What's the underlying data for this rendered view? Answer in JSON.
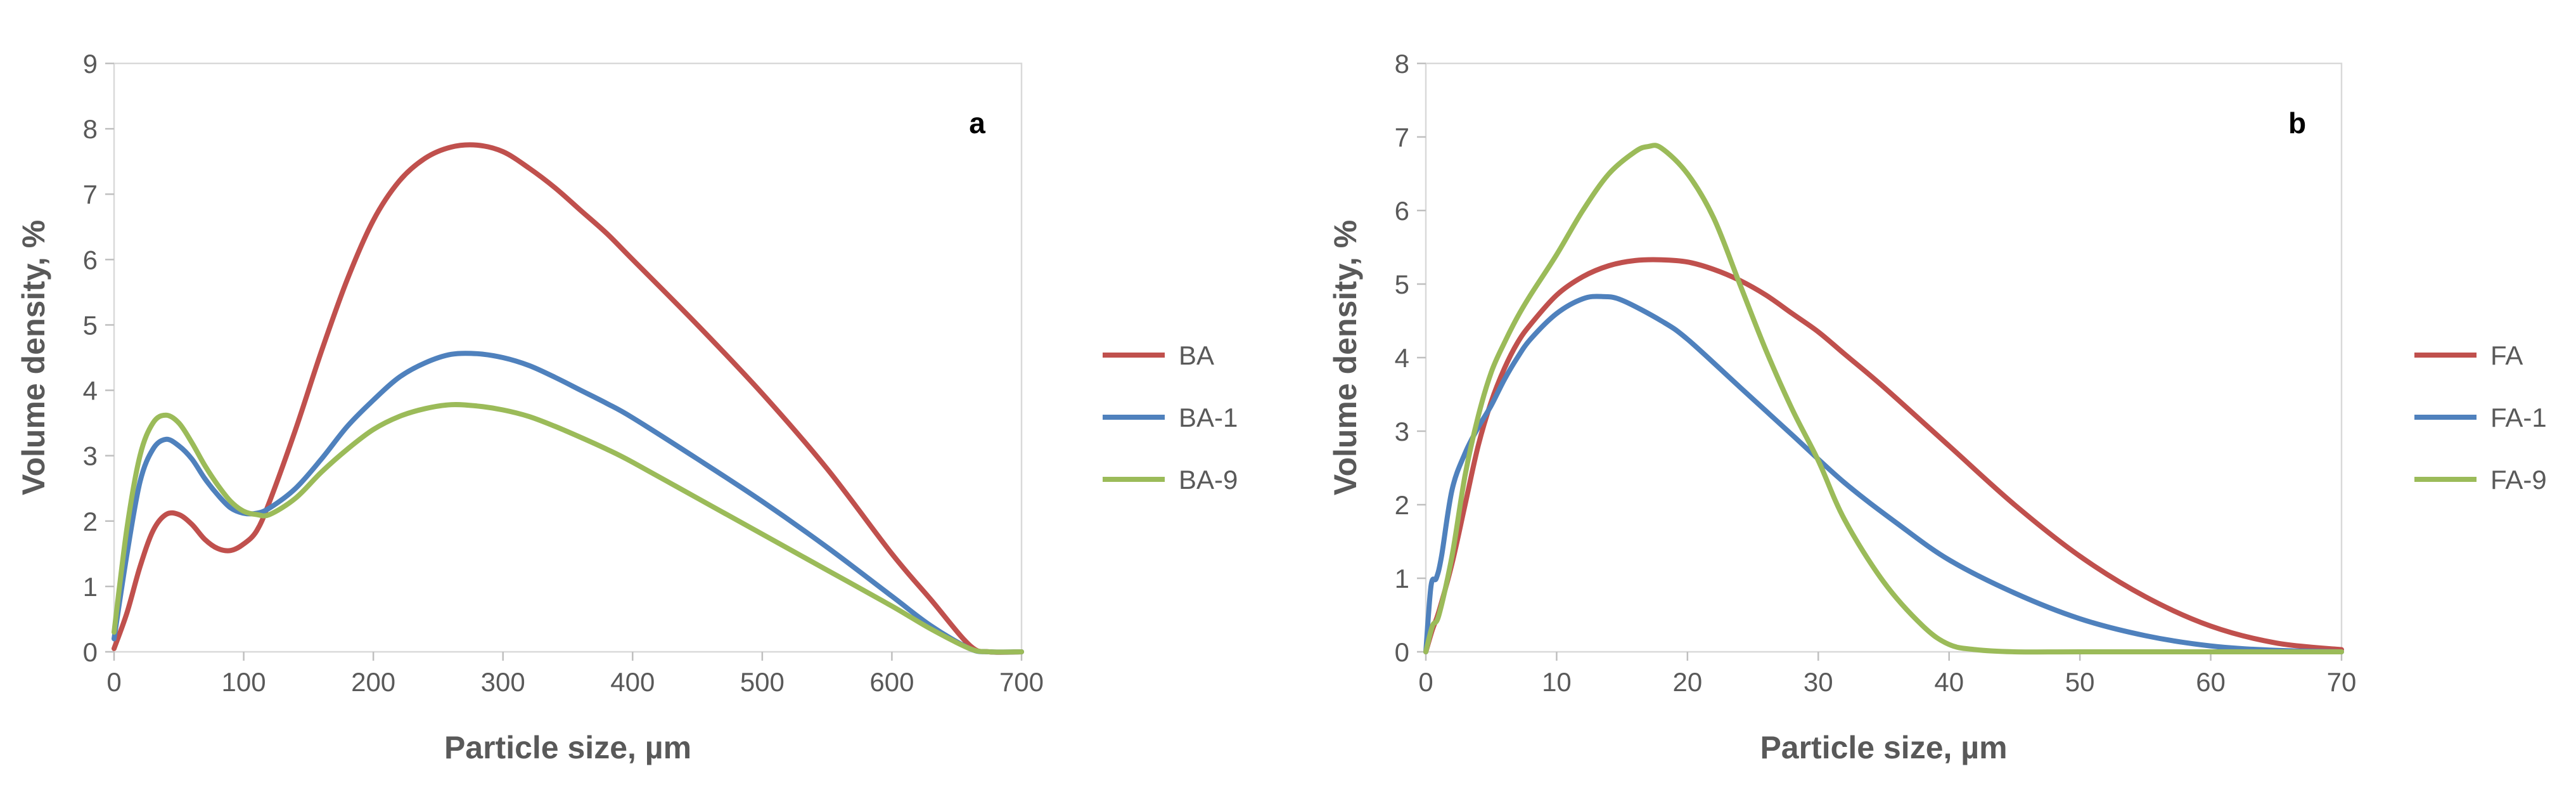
{
  "chart_data": [
    {
      "type": "line",
      "panel_label": "a",
      "title": "",
      "xlabel": "Particle size, µm",
      "ylabel": "Volume density, %",
      "xlim": [
        0,
        700
      ],
      "ylim": [
        0,
        9
      ],
      "xticks": [
        "0",
        "100",
        "200",
        "300",
        "400",
        "500",
        "600",
        "700"
      ],
      "yticks": [
        "0",
        "1",
        "2",
        "3",
        "4",
        "5",
        "6",
        "7",
        "8",
        "9"
      ],
      "grid": false,
      "legend": "right",
      "series": [
        {
          "name": "BA",
          "color": "#C0504D",
          "x": [
            0,
            10,
            20,
            30,
            40,
            50,
            60,
            70,
            80,
            90,
            100,
            110,
            120,
            140,
            160,
            180,
            200,
            220,
            240,
            260,
            280,
            300,
            320,
            340,
            360,
            380,
            400,
            450,
            500,
            550,
            600,
            630,
            660,
            675,
            700
          ],
          "y": [
            0.05,
            0.6,
            1.3,
            1.85,
            2.1,
            2.1,
            1.95,
            1.72,
            1.58,
            1.55,
            1.65,
            1.85,
            2.3,
            3.4,
            4.6,
            5.7,
            6.6,
            7.2,
            7.55,
            7.72,
            7.75,
            7.65,
            7.4,
            7.1,
            6.75,
            6.4,
            6.0,
            5.0,
            3.95,
            2.8,
            1.5,
            0.8,
            0.1,
            0.0,
            0.0
          ]
        },
        {
          "name": "BA-1",
          "color": "#4F81BD",
          "x": [
            0,
            10,
            20,
            30,
            40,
            50,
            60,
            70,
            80,
            90,
            100,
            110,
            120,
            140,
            160,
            180,
            200,
            220,
            240,
            260,
            280,
            300,
            320,
            340,
            360,
            380,
            400,
            450,
            500,
            550,
            600,
            630,
            660,
            675,
            700
          ],
          "y": [
            0.2,
            1.5,
            2.6,
            3.1,
            3.25,
            3.15,
            2.95,
            2.65,
            2.4,
            2.2,
            2.12,
            2.12,
            2.2,
            2.5,
            2.95,
            3.45,
            3.85,
            4.2,
            4.42,
            4.55,
            4.56,
            4.5,
            4.38,
            4.2,
            4.0,
            3.8,
            3.58,
            2.95,
            2.3,
            1.6,
            0.85,
            0.4,
            0.05,
            0.0,
            0.0
          ]
        },
        {
          "name": "BA-9",
          "color": "#9BBB59",
          "x": [
            0,
            10,
            20,
            30,
            40,
            50,
            60,
            70,
            80,
            90,
            100,
            110,
            120,
            140,
            160,
            180,
            200,
            220,
            240,
            260,
            280,
            300,
            320,
            340,
            360,
            380,
            400,
            450,
            500,
            550,
            600,
            630,
            660,
            675,
            700
          ],
          "y": [
            0.3,
            1.9,
            3.0,
            3.5,
            3.62,
            3.5,
            3.2,
            2.85,
            2.55,
            2.3,
            2.15,
            2.1,
            2.1,
            2.35,
            2.75,
            3.1,
            3.4,
            3.6,
            3.72,
            3.78,
            3.76,
            3.7,
            3.6,
            3.45,
            3.28,
            3.1,
            2.9,
            2.35,
            1.8,
            1.25,
            0.7,
            0.35,
            0.05,
            0.0,
            0.0
          ]
        }
      ]
    },
    {
      "type": "line",
      "panel_label": "b",
      "title": "",
      "xlabel": "Particle size, µm",
      "ylabel": "Volume density, %",
      "xlim": [
        0,
        70
      ],
      "ylim": [
        0,
        8
      ],
      "xticks": [
        "0",
        "10",
        "20",
        "30",
        "40",
        "50",
        "60",
        "70"
      ],
      "yticks": [
        "0",
        "1",
        "2",
        "3",
        "4",
        "5",
        "6",
        "7",
        "8"
      ],
      "grid": false,
      "legend": "right",
      "series": [
        {
          "name": "FA",
          "color": "#C0504D",
          "x": [
            0,
            0.5,
            1,
            2,
            3,
            4,
            5,
            6,
            7,
            8,
            10,
            12,
            14,
            16,
            18,
            20,
            22,
            24,
            26,
            28,
            30,
            32,
            35,
            40,
            45,
            50,
            55,
            60,
            65,
            70
          ],
          "y": [
            0.0,
            0.3,
            0.55,
            1.2,
            2.0,
            2.8,
            3.4,
            3.85,
            4.2,
            4.45,
            4.85,
            5.1,
            5.25,
            5.32,
            5.33,
            5.3,
            5.2,
            5.05,
            4.85,
            4.6,
            4.35,
            4.05,
            3.6,
            2.8,
            2.0,
            1.3,
            0.75,
            0.35,
            0.12,
            0.03
          ]
        },
        {
          "name": "FA-1",
          "color": "#4F81BD",
          "x": [
            0,
            0.4,
            0.8,
            1.2,
            2,
            3,
            4,
            5,
            6,
            7,
            8,
            10,
            12,
            13.5,
            15,
            18,
            20,
            24,
            28,
            32,
            36,
            40,
            45,
            50,
            55,
            60,
            65,
            70
          ],
          "y": [
            0.0,
            0.9,
            1.0,
            1.3,
            2.2,
            2.7,
            3.05,
            3.35,
            3.7,
            4.0,
            4.25,
            4.6,
            4.8,
            4.83,
            4.78,
            4.5,
            4.25,
            3.6,
            2.95,
            2.3,
            1.75,
            1.25,
            0.8,
            0.45,
            0.22,
            0.08,
            0.02,
            0.0
          ]
        },
        {
          "name": "FA-9",
          "color": "#9BBB59",
          "x": [
            0,
            0.5,
            1,
            2,
            3,
            4,
            5,
            6,
            7,
            8,
            10,
            12,
            14,
            16,
            17,
            18,
            20,
            22,
            24,
            26,
            28,
            30,
            32,
            35,
            38,
            40,
            42,
            45,
            50,
            60,
            70
          ],
          "y": [
            0.0,
            0.35,
            0.5,
            1.3,
            2.4,
            3.2,
            3.8,
            4.2,
            4.55,
            4.85,
            5.4,
            6.0,
            6.5,
            6.8,
            6.87,
            6.85,
            6.5,
            5.9,
            5.0,
            4.1,
            3.3,
            2.6,
            1.8,
            0.95,
            0.35,
            0.1,
            0.03,
            0.0,
            0.0,
            0.0,
            0.0
          ]
        }
      ]
    }
  ]
}
